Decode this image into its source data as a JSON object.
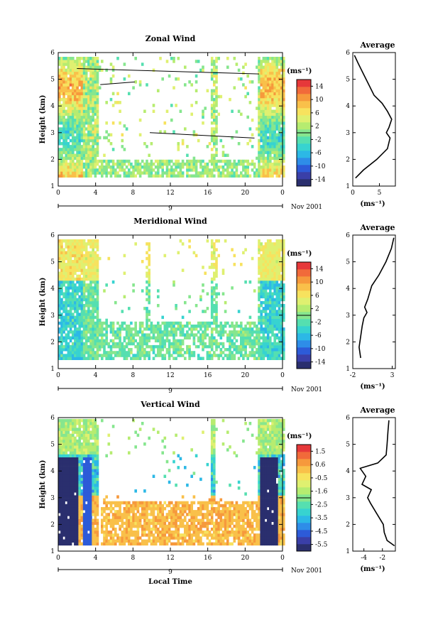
{
  "chart_data": [
    {
      "type": "heatmap",
      "title": "Zonal Wind",
      "xlabel": "",
      "ylabel": "Height (km)",
      "xlim": [
        0,
        24
      ],
      "ylim": [
        1,
        6
      ],
      "xticks": [
        "0",
        "4",
        "8",
        "12",
        "16",
        "20",
        "0"
      ],
      "yticks": [
        "1",
        "2",
        "3",
        "4",
        "5",
        "6"
      ],
      "date_label": "9",
      "month_label": "Nov 2001",
      "colorbar": {
        "unit": "(ms⁻¹)",
        "ticks": [
          "14",
          "10",
          "6",
          "2",
          "-2",
          "-6",
          "-10",
          "-14"
        ],
        "range": [
          -16,
          16
        ]
      },
      "profile": {
        "title": "Average",
        "xlabel": "(ms⁻¹)",
        "xticks": [
          "0",
          "5"
        ],
        "xlim": [
          0,
          8
        ],
        "heights": [
          1.3,
          1.6,
          2.0,
          2.4,
          2.8,
          3.0,
          3.2,
          3.5,
          3.8,
          4.1,
          4.4,
          4.8,
          5.2,
          5.6,
          5.9
        ],
        "values": [
          0.5,
          2.0,
          4.5,
          6.5,
          7.0,
          6.3,
          6.8,
          7.3,
          6.5,
          5.5,
          4.0,
          3.0,
          2.0,
          1.0,
          0.3
        ]
      }
    },
    {
      "type": "heatmap",
      "title": "Meridional Wind",
      "xlabel": "",
      "ylabel": "Height (km)",
      "xlim": [
        0,
        24
      ],
      "ylim": [
        1,
        6
      ],
      "xticks": [
        "0",
        "4",
        "8",
        "12",
        "16",
        "20",
        "0"
      ],
      "yticks": [
        "1",
        "2",
        "3",
        "4",
        "5",
        "6"
      ],
      "date_label": "9",
      "month_label": "Nov 2001",
      "colorbar": {
        "unit": "(ms⁻¹)",
        "ticks": [
          "14",
          "10",
          "6",
          "2",
          "-2",
          "-6",
          "-10",
          "-14"
        ],
        "range": [
          -16,
          16
        ]
      },
      "profile": {
        "title": "Average",
        "xlabel": "(ms⁻¹)",
        "xticks": [
          "-2",
          "3"
        ],
        "xlim": [
          -2,
          3.4
        ],
        "heights": [
          1.4,
          1.8,
          2.2,
          2.6,
          2.9,
          3.1,
          3.3,
          3.6,
          3.9,
          4.1,
          4.5,
          5.0,
          5.5,
          5.9
        ],
        "values": [
          -1.0,
          -1.2,
          -1.0,
          -0.8,
          -0.6,
          -0.2,
          -0.5,
          -0.1,
          0.2,
          0.4,
          1.3,
          2.2,
          2.9,
          3.2
        ]
      }
    },
    {
      "type": "heatmap",
      "title": "Vertical Wind",
      "xlabel": "Local Time",
      "ylabel": "Height (km)",
      "xlim": [
        0,
        24
      ],
      "ylim": [
        1,
        6
      ],
      "xticks": [
        "0",
        "4",
        "8",
        "12",
        "16",
        "20",
        "0"
      ],
      "yticks": [
        "1",
        "2",
        "3",
        "4",
        "5",
        "6"
      ],
      "date_label": "9",
      "month_label": "Nov 2001",
      "colorbar": {
        "unit": "(ms⁻¹)",
        "ticks": [
          "1.5",
          "0.6",
          "-0.5",
          "-1.6",
          "-2.5",
          "-3.5",
          "-4.5",
          "-5.5"
        ],
        "range": [
          -6.0,
          2.0
        ]
      },
      "profile": {
        "title": "Average",
        "xlabel": "(ms⁻¹)",
        "xticks": [
          "-4",
          "-2"
        ],
        "xlim": [
          -5.2,
          -0.6
        ],
        "heights": [
          1.2,
          1.4,
          1.7,
          2.0,
          2.4,
          2.8,
          3.0,
          3.3,
          3.5,
          3.8,
          4.1,
          4.3,
          4.6,
          5.0,
          5.5,
          5.9
        ],
        "values": [
          -0.7,
          -1.5,
          -1.8,
          -1.9,
          -2.6,
          -3.3,
          -3.6,
          -3.2,
          -4.2,
          -3.8,
          -4.4,
          -2.5,
          -1.6,
          -1.5,
          -1.4,
          -1.3
        ]
      }
    }
  ]
}
